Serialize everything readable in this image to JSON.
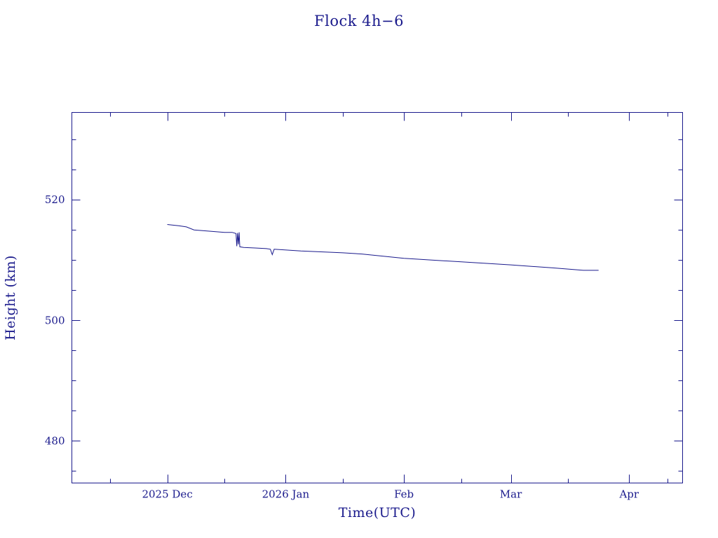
{
  "chart_data": {
    "type": "line",
    "title": "Flock 4h−6",
    "xlabel": "Time(UTC)",
    "ylabel": "Height (km)",
    "x_type": "date",
    "xlim": [
      "2025-11-06",
      "2026-04-15"
    ],
    "ylim": [
      473,
      534.5
    ],
    "x_ticks": [
      {
        "date": "2025-12-01",
        "label": "2025 Dec"
      },
      {
        "date": "2026-01-01",
        "label": "2026 Jan"
      },
      {
        "date": "2026-02-01",
        "label": "Feb"
      },
      {
        "date": "2026-03-01",
        "label": "Mar"
      },
      {
        "date": "2026-04-01",
        "label": "Apr"
      }
    ],
    "x_minor_ticks": [
      "2025-11-16",
      "2025-12-16",
      "2026-01-16",
      "2026-02-16",
      "2026-03-16",
      "2026-04-11"
    ],
    "y_ticks": [
      {
        "value": 480,
        "label": "480"
      },
      {
        "value": 500,
        "label": "500"
      },
      {
        "value": 520,
        "label": "520"
      }
    ],
    "y_minor_step": 5,
    "grid": false,
    "series": [
      {
        "color": "#1a1a8c",
        "points": [
          [
            "2025-12-01",
            515.9
          ],
          [
            "2025-12-04",
            515.7
          ],
          [
            "2025-12-06",
            515.5
          ],
          [
            "2025-12-08",
            515.0
          ],
          [
            "2025-12-12",
            514.8
          ],
          [
            "2025-12-16",
            514.6
          ],
          [
            "2025-12-18",
            514.6
          ],
          [
            "2025-12-19",
            514.4
          ],
          [
            "2025-12-19T05:00",
            512.3
          ],
          [
            "2025-12-19T10:00",
            514.5
          ],
          [
            "2025-12-19T15:00",
            512.6
          ],
          [
            "2025-12-19T20:00",
            514.6
          ],
          [
            "2025-12-20",
            512.2
          ],
          [
            "2025-12-21",
            512.1
          ],
          [
            "2025-12-24",
            512.0
          ],
          [
            "2025-12-27",
            511.9
          ],
          [
            "2025-12-28",
            511.8
          ],
          [
            "2025-12-28T12:00",
            510.9
          ],
          [
            "2025-12-29",
            511.8
          ],
          [
            "2026-01-05",
            511.5
          ],
          [
            "2026-01-16",
            511.2
          ],
          [
            "2026-01-21",
            511.0
          ],
          [
            "2026-02-01",
            510.3
          ],
          [
            "2026-02-16",
            509.7
          ],
          [
            "2026-03-01",
            509.2
          ],
          [
            "2026-03-12",
            508.7
          ],
          [
            "2026-03-20",
            508.3
          ],
          [
            "2026-03-24",
            508.3
          ]
        ]
      }
    ]
  }
}
